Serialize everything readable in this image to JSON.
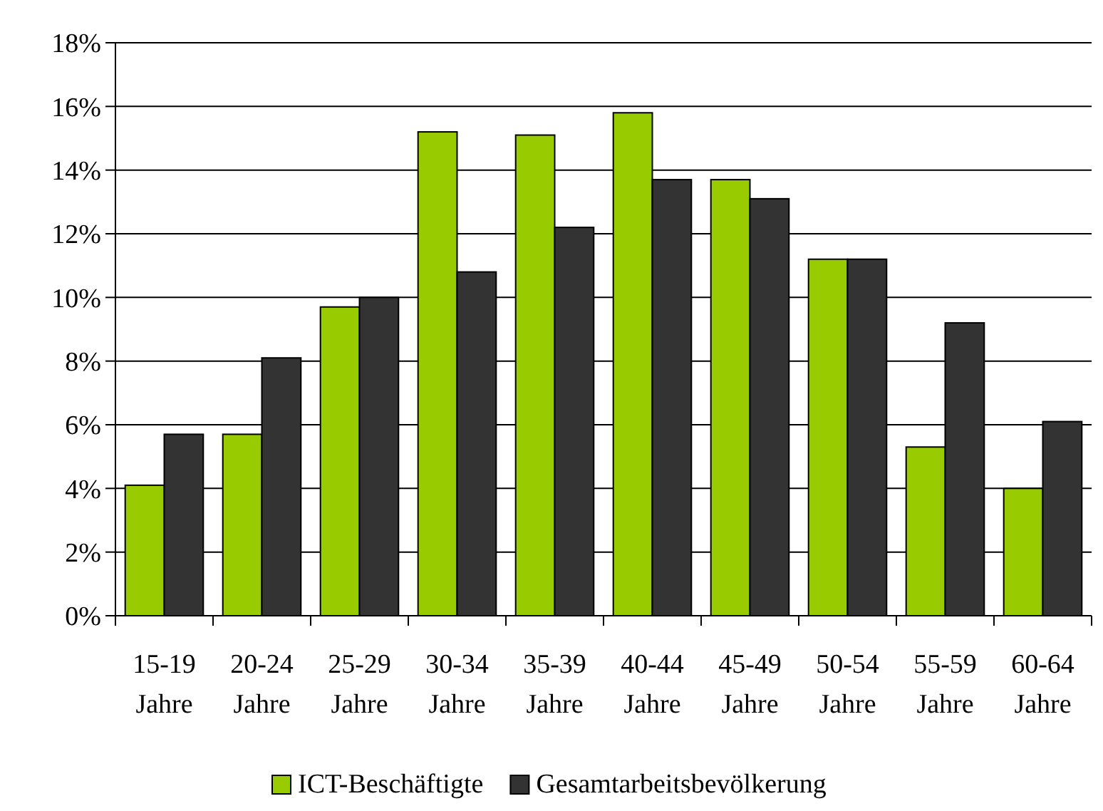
{
  "chart_data": {
    "type": "bar",
    "categories": [
      "15-19 Jahre",
      "20-24 Jahre",
      "25-29 Jahre",
      "30-34 Jahre",
      "35-39 Jahre",
      "40-44 Jahre",
      "45-49 Jahre",
      "50-54 Jahre",
      "55-59 Jahre",
      "60-64 Jahre"
    ],
    "series": [
      {
        "name": "ICT-Beschäftigte",
        "color": "#99cc00",
        "values": [
          4.1,
          5.7,
          9.7,
          15.2,
          15.1,
          15.8,
          13.7,
          11.2,
          5.3,
          4.0
        ]
      },
      {
        "name": "Gesamtarbeitsbevölkerung",
        "color": "#333333",
        "values": [
          5.7,
          8.1,
          10.0,
          10.8,
          12.2,
          13.7,
          13.1,
          11.2,
          9.2,
          6.1
        ]
      }
    ],
    "ylim": [
      0,
      18
    ],
    "yticks": [
      {
        "value": 0,
        "label": "0%"
      },
      {
        "value": 2,
        "label": "2%"
      },
      {
        "value": 4,
        "label": "4%"
      },
      {
        "value": 6,
        "label": "6%"
      },
      {
        "value": 8,
        "label": "8%"
      },
      {
        "value": 10,
        "label": "10%"
      },
      {
        "value": 12,
        "label": "12%"
      },
      {
        "value": 14,
        "label": "14%"
      },
      {
        "value": 16,
        "label": "16%"
      },
      {
        "value": 18,
        "label": "18%"
      }
    ],
    "grid": "y",
    "legend": "bottom"
  }
}
